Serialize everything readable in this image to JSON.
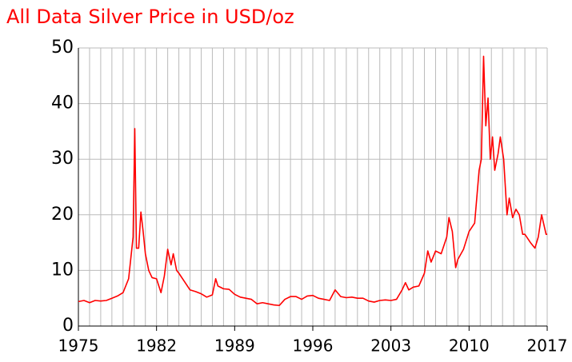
{
  "chart_data": {
    "type": "line",
    "title": "All Data Silver Price in USD/oz",
    "x": [
      1975,
      1975.5,
      1976,
      1976.5,
      1977,
      1977.5,
      1978,
      1978.5,
      1979,
      1979.5,
      1979.9,
      1980.05,
      1980.2,
      1980.4,
      1980.6,
      1980.8,
      1981,
      1981.3,
      1981.6,
      1982,
      1982.4,
      1982.7,
      1983,
      1983.3,
      1983.5,
      1983.8,
      1984,
      1984.5,
      1985,
      1985.5,
      1986,
      1986.5,
      1987,
      1987.3,
      1987.5,
      1988,
      1988.5,
      1989,
      1989.5,
      1990,
      1990.5,
      1991,
      1991.5,
      1992,
      1992.5,
      1993,
      1993.5,
      1994,
      1994.5,
      1995,
      1995.5,
      1996,
      1996.5,
      1997,
      1997.5,
      1998,
      1998.5,
      1999,
      1999.5,
      2000,
      2000.5,
      2001,
      2001.5,
      2002,
      2002.5,
      2003,
      2003.5,
      2004,
      2004.3,
      2004.6,
      2005,
      2005.5,
      2006,
      2006.3,
      2006.6,
      2007,
      2007.5,
      2008,
      2008.2,
      2008.5,
      2008.8,
      2009,
      2009.5,
      2010,
      2010.5,
      2010.9,
      2011.1,
      2011.3,
      2011.5,
      2011.7,
      2011.9,
      2012.1,
      2012.3,
      2012.6,
      2012.8,
      2013.1,
      2013.4,
      2013.6,
      2013.9,
      2014.2,
      2014.5,
      2014.8,
      2015,
      2015.5,
      2015.9,
      2016.2,
      2016.5,
      2016.9,
      2017
    ],
    "series": [
      {
        "name": "Silver",
        "color": "#ff0000",
        "values": [
          4.4,
          4.6,
          4.2,
          4.6,
          4.5,
          4.6,
          5.0,
          5.4,
          6.0,
          8.5,
          16,
          35.5,
          14,
          14,
          20.5,
          17,
          13,
          10,
          8.7,
          8.5,
          6.0,
          9,
          13.8,
          11,
          13,
          10,
          9.5,
          8,
          6.5,
          6.2,
          5.8,
          5.2,
          5.6,
          8.5,
          7.2,
          6.7,
          6.6,
          5.7,
          5.2,
          5.0,
          4.8,
          4.0,
          4.2,
          4.0,
          3.8,
          3.7,
          4.8,
          5.3,
          5.3,
          4.8,
          5.4,
          5.5,
          5.0,
          4.8,
          4.6,
          6.5,
          5.3,
          5.1,
          5.2,
          5.0,
          5.0,
          4.5,
          4.3,
          4.6,
          4.7,
          4.6,
          4.8,
          6.5,
          7.8,
          6.5,
          7.0,
          7.2,
          9.5,
          13.5,
          11.5,
          13.5,
          13.0,
          16,
          19.5,
          17,
          10.5,
          12,
          13.8,
          17,
          18.5,
          28,
          30,
          48.5,
          36,
          41,
          30,
          34,
          28,
          31,
          34,
          30,
          20,
          23,
          19.5,
          21,
          20,
          16.5,
          16.5,
          15.0,
          14,
          16,
          20,
          16.5,
          16.5
        ]
      }
    ],
    "xlim": [
      1975,
      2017
    ],
    "xticks": [
      1975,
      1982,
      1989,
      1996,
      2003,
      2010,
      2017
    ],
    "x_minor_ticks": [
      1975,
      1976,
      1977,
      1978,
      1979,
      1980,
      1981,
      1982,
      1983,
      1984,
      1985,
      1986,
      1987,
      1988,
      1989,
      1990,
      1991,
      1992,
      1993,
      1994,
      1995,
      1996,
      1997,
      1998,
      1999,
      2000,
      2001,
      2002,
      2003,
      2004,
      2005,
      2006,
      2007,
      2008,
      2009,
      2010,
      2011,
      2012,
      2013,
      2014,
      2015,
      2016,
      2017
    ],
    "ylim": [
      0,
      50
    ],
    "yticks": [
      0,
      10,
      20,
      30,
      40,
      50
    ],
    "grid": true
  }
}
